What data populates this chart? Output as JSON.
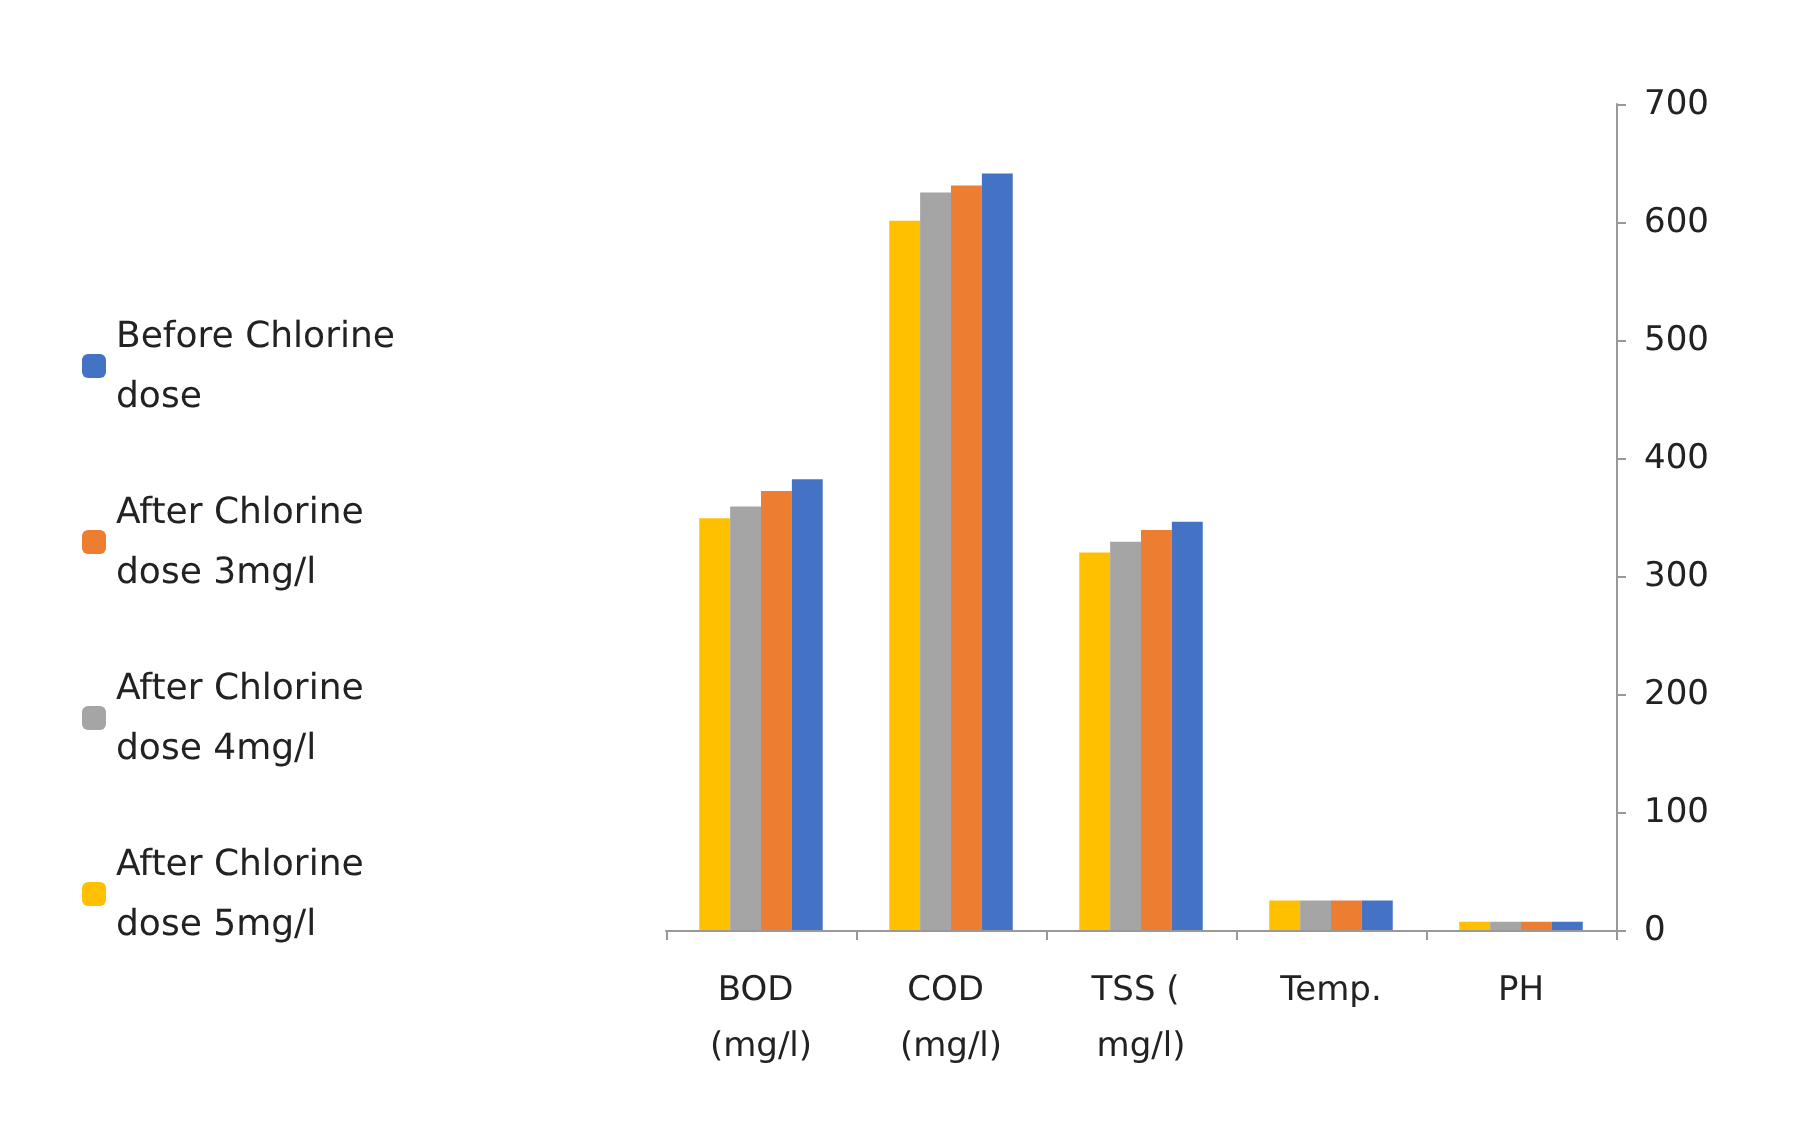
{
  "chart_data": {
    "type": "bar",
    "categories": [
      "BOD (mg/l)",
      "COD (mg/l)",
      "TSS ( mg/l)",
      "Temp.",
      "PH"
    ],
    "series": [
      {
        "name": "After Chlorine  dose 5mg/l",
        "color": "#ffc000",
        "values": [
          349,
          601,
          320,
          25,
          7
        ]
      },
      {
        "name": "After Chlorine  dose 4mg/l",
        "color": "#a5a5a5",
        "values": [
          359,
          625,
          329,
          25,
          7
        ]
      },
      {
        "name": "After Chlorine  dose 3mg/l",
        "color": "#ed7d31",
        "values": [
          372,
          631,
          339,
          25,
          7
        ]
      },
      {
        "name": "Before Chlorine dose",
        "color": "#4472c4",
        "values": [
          382,
          641,
          346,
          25,
          7
        ]
      }
    ],
    "ylim": [
      0,
      700
    ],
    "yticks": [
      0,
      100,
      200,
      300,
      400,
      500,
      600,
      700
    ],
    "grid": false,
    "legend": "left"
  }
}
